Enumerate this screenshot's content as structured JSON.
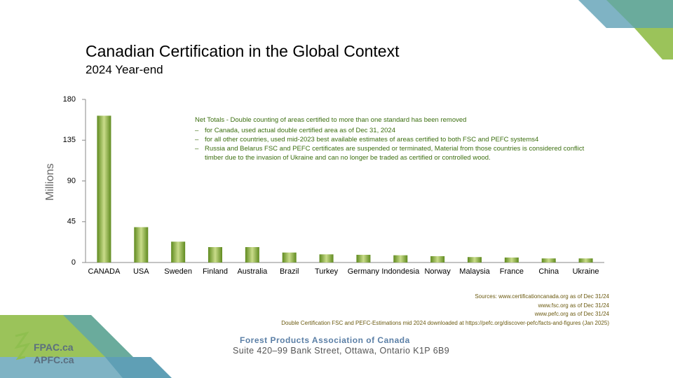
{
  "title": "Canadian Certification in the Global Context",
  "subtitle": "2024 Year-end",
  "chart_data": {
    "type": "bar",
    "y_label": "Millions",
    "categories": [
      "CANADA",
      "USA",
      "Sweden",
      "Finland",
      "Australia",
      "Brazil",
      "Turkey",
      "Germany",
      "Indondesia",
      "Norway",
      "Malaysia",
      "France",
      "China",
      "Ukraine"
    ],
    "values": [
      162,
      39,
      23,
      17,
      17,
      11,
      9,
      8.5,
      8,
      7,
      6,
      5.5,
      4.5,
      4.5
    ],
    "color": "#5f8a1f",
    "ylim": [
      0,
      180
    ],
    "yticks": [
      0,
      45,
      90,
      135,
      180
    ],
    "grid": false,
    "annotation": {
      "heading": "Net Totals - Double counting of areas certified to more than one standard has been removed",
      "bullets": [
        "for Canada, used actual double certified area as of Dec 31, 2024",
        "for all other countries, used mid-2023 best available estimates of areas certified to both FSC and PEFC systems4",
        "Russia and Belarus FSC and PEFC certificates are suspended or terminated, Material from those countries is considered conflict timber due to the invasion of Ukraine and can no longer be traded as certified or controlled wood."
      ]
    }
  },
  "sources": [
    "Sources:  www.certificationcanada.org as of Dec 31/24",
    "www.fsc.org as of Dec 31/24",
    "www.pefc.org as of Dec 31/24",
    "Double Certification FSC and PEFC-Estimations mid 2024 downloaded at https://pefc.org/discover-pefc/facts-and-figures (Jan 2025)"
  ],
  "footer": {
    "organization": "Forest Products Association of Canada",
    "address": "Suite 420–99 Bank Street, Ottawa, Ontario K1P 6B9"
  },
  "logo": [
    "FPAC.ca",
    "APFC.ca"
  ]
}
